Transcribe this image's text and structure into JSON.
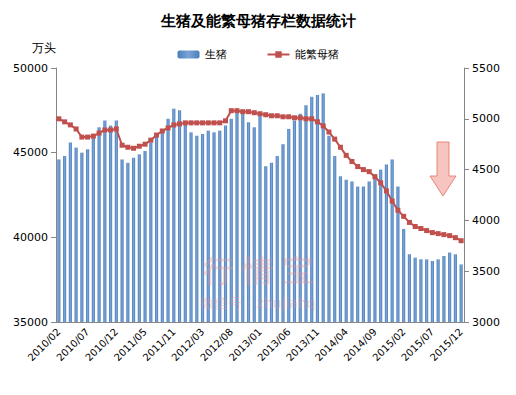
{
  "chart_data": {
    "type": "bar",
    "title": "生猪及能繁母猪存栏数据统计",
    "ylabel": "万头",
    "annotations": [
      "行 情 宝",
      "微信号：zhujiahq"
    ],
    "categories": [
      "2010/02",
      null,
      null,
      null,
      null,
      "2010/07",
      null,
      null,
      null,
      null,
      "2010/12",
      null,
      null,
      null,
      null,
      "2011/05",
      null,
      null,
      null,
      null,
      "2011/11",
      null,
      null,
      null,
      null,
      "2012/03",
      null,
      null,
      null,
      null,
      "2012/08",
      null,
      null,
      null,
      null,
      "2013/01",
      null,
      null,
      null,
      null,
      "2013/06",
      null,
      null,
      null,
      null,
      "2013/11",
      null,
      null,
      null,
      null,
      "2014/04",
      null,
      null,
      null,
      null,
      "2014/09",
      null,
      null,
      null,
      null,
      "2015/02",
      null,
      null,
      null,
      null,
      "2015/07",
      null,
      null,
      null,
      null,
      "2015/12"
    ],
    "series": [
      {
        "name": "生猪",
        "type": "bar",
        "color": "#4a7ebb",
        "values": [
          44600,
          44800,
          45600,
          45300,
          45000,
          45200,
          46000,
          46500,
          46900,
          46600,
          46900,
          44600,
          44400,
          44700,
          44900,
          45100,
          45600,
          46000,
          46400,
          47000,
          47600,
          47500,
          46800,
          46200,
          46000,
          46100,
          46300,
          46200,
          46300,
          46600,
          47000,
          47400,
          47500,
          46800,
          46500,
          47200,
          44200,
          44400,
          44800,
          45500,
          46400,
          46900,
          47300,
          47800,
          48300,
          48400,
          48500,
          46000,
          44800,
          43600,
          43400,
          43300,
          43000,
          43000,
          43300,
          43700,
          44000,
          44300,
          44600,
          43000,
          40500,
          39000,
          38800,
          38700,
          38700,
          38600,
          38700,
          38900,
          39100,
          39000,
          38400
        ]
      },
      {
        "name": "能繁母猪",
        "type": "line",
        "axis": "y2",
        "color": "#c0504d",
        "marker": "square",
        "values": [
          5000,
          4970,
          4940,
          4900,
          4820,
          4820,
          4830,
          4860,
          4890,
          4890,
          4900,
          4740,
          4720,
          4710,
          4730,
          4750,
          4790,
          4840,
          4880,
          4910,
          4940,
          4950,
          4960,
          4960,
          4960,
          4960,
          4960,
          4960,
          4960,
          4980,
          5080,
          5080,
          5070,
          5070,
          5060,
          5050,
          5040,
          5030,
          5030,
          5020,
          5020,
          5010,
          5010,
          5000,
          5000,
          4970,
          4930,
          4870,
          4800,
          4720,
          4640,
          4580,
          4530,
          4500,
          4480,
          4430,
          4370,
          4290,
          4190,
          4100,
          4040,
          3980,
          3940,
          3920,
          3900,
          3880,
          3870,
          3860,
          3850,
          3830,
          3800
        ]
      }
    ],
    "ylim": [
      35000,
      50000
    ],
    "yticks": [
      35000,
      40000,
      45000,
      50000
    ],
    "y2lim": [
      3000,
      5500
    ],
    "y2ticks": [
      3000,
      3500,
      4000,
      4500,
      5000,
      5500
    ],
    "legend": "top",
    "grid": false
  }
}
